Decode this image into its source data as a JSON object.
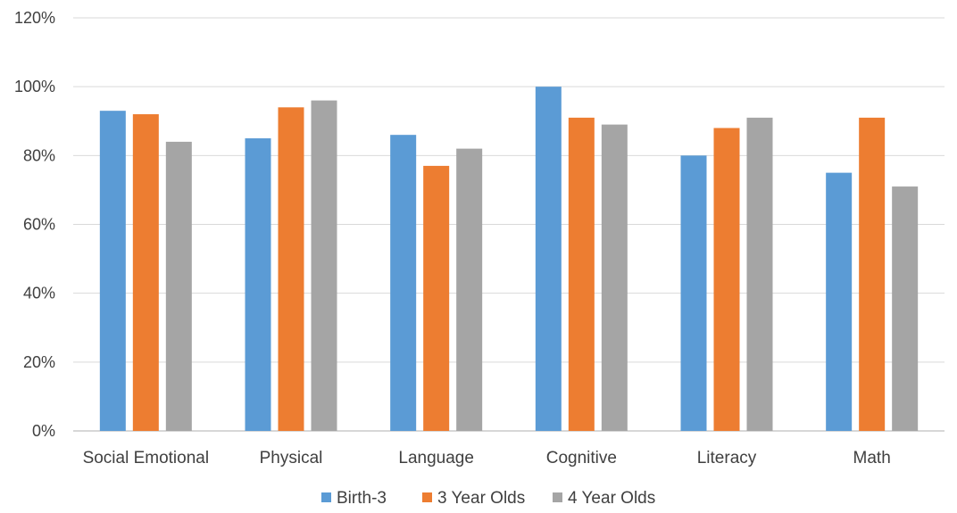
{
  "chart_data": {
    "type": "bar",
    "title": "",
    "xlabel": "",
    "ylabel": "",
    "categories": [
      "Social Emotional",
      "Physical",
      "Language",
      "Cognitive",
      "Literacy",
      "Math"
    ],
    "series": [
      {
        "name": "Birth-3",
        "color": "#5b9bd5",
        "values": [
          93,
          85,
          86,
          100,
          80,
          75
        ]
      },
      {
        "name": "3 Year Olds",
        "color": "#ed7d31",
        "values": [
          92,
          94,
          77,
          91,
          88,
          91
        ]
      },
      {
        "name": "4 Year Olds",
        "color": "#a5a5a5",
        "values": [
          84,
          96,
          82,
          89,
          91,
          71
        ]
      }
    ],
    "yticks": [
      "0%",
      "20%",
      "40%",
      "60%",
      "80%",
      "100%",
      "120%"
    ],
    "ylim": [
      0,
      120
    ],
    "grid": true,
    "legend_position": "bottom-center"
  }
}
